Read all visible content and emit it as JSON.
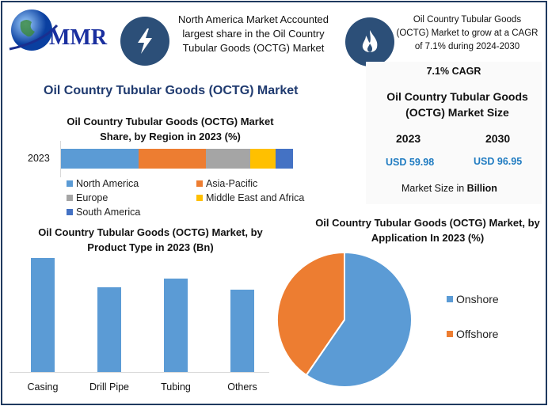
{
  "logo": {
    "text": "MMR"
  },
  "header": {
    "info1": "North America Market Accounted largest share in the Oil Country Tubular Goods (OCTG) Market",
    "info1_icon": "lightning-icon",
    "info2": "Oil Country Tubular Goods (OCTG) Market to grow at a CAGR of 7.1% during 2024-2030",
    "info2_icon": "flame-icon",
    "icon_color": "#2c4f78"
  },
  "main_title": "Oil Country Tubular Goods (OCTG) Market",
  "market_size": {
    "cagr": "7.1% CAGR",
    "title": "Oil Country Tubular Goods (OCTG) Market Size",
    "year1": "2023",
    "year2": "2030",
    "value1": "USD 59.98",
    "value2": "USD 96.95",
    "unit_prefix": "Market Size in ",
    "unit": "Billion",
    "value_color": "#1f7bc1"
  },
  "chart_data": [
    {
      "type": "bar",
      "orientation": "horizontal-stacked",
      "title": "Oil Country Tubular Goods (OCTG) Market Share, by Region in 2023 (%)",
      "categories": [
        "2023"
      ],
      "series": [
        {
          "name": "North America",
          "values": [
            33.5
          ],
          "color": "#5b9bd5"
        },
        {
          "name": "Asia-Pacific",
          "values": [
            29
          ],
          "color": "#ed7d31"
        },
        {
          "name": "Europe",
          "values": [
            19
          ],
          "color": "#a5a5a5"
        },
        {
          "name": "Middle East and Africa",
          "values": [
            11
          ],
          "color": "#ffc000"
        },
        {
          "name": "South America",
          "values": [
            7.5
          ],
          "color": "#4472c4"
        }
      ],
      "legend": "bottom"
    },
    {
      "type": "bar",
      "title": "Oil Country Tubular Goods (OCTG) Market, by Product Type in 2023 (Bn)",
      "categories": [
        "Casing",
        "Drill Pipe",
        "Tubing",
        "Others"
      ],
      "values": [
        18.3,
        13.6,
        15.0,
        13.2
      ],
      "color": "#5b9bd5",
      "grid": false
    },
    {
      "type": "pie",
      "title": "Oil Country Tubular Goods (OCTG) Market, by Application In 2023 (%)",
      "categories": [
        "Onshore",
        "Offshore"
      ],
      "values": [
        59.6,
        40.4
      ],
      "colors": [
        "#5b9bd5",
        "#ed7d31"
      ],
      "legend": "right"
    }
  ]
}
